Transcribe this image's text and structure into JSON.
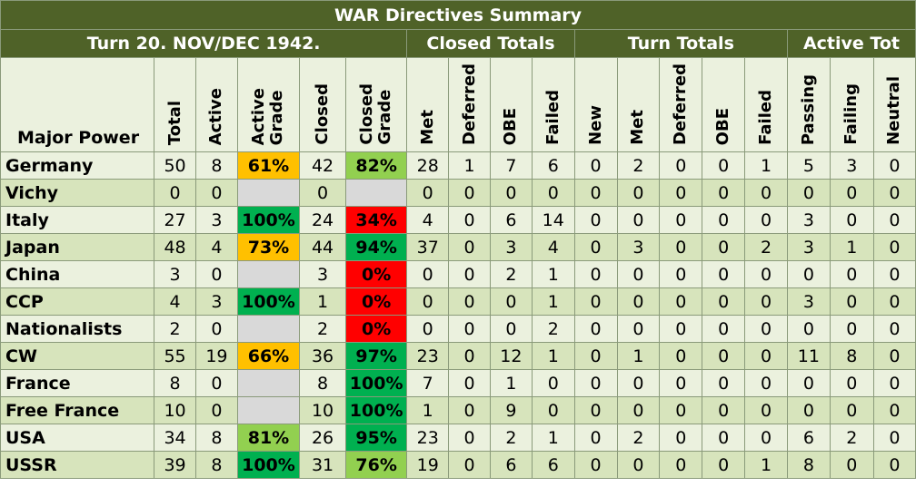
{
  "title": "WAR Directives Summary",
  "groups": {
    "turn": "Turn 20.  NOV/DEC 1942.",
    "closed_totals": "Closed Totals",
    "turn_totals": "Turn Totals",
    "active_tot": "Active Tot"
  },
  "columns": {
    "major_power": "Major Power",
    "total": "Total",
    "active": "Active",
    "active_grade_1": "Active",
    "active_grade_2": "Grade",
    "closed": "Closed",
    "closed_grade_1": "Closed",
    "closed_grade_2": "Grade",
    "ct_met": "Met",
    "ct_deferred": "Deferred",
    "ct_obe": "OBE",
    "ct_failed": "Failed",
    "tt_new": "New",
    "tt_met": "Met",
    "tt_deferred": "Deferred",
    "tt_obe": "OBE",
    "tt_failed": "Failed",
    "at_passing": "Passing",
    "at_failing": "Failing",
    "at_neutral": "Neutral"
  },
  "rows": [
    {
      "name": "Germany",
      "total": "50",
      "active": "8",
      "active_grade": "61%",
      "active_grade_color": "#ffc000",
      "closed": "42",
      "closed_grade": "82%",
      "closed_grade_color": "#92d050",
      "ct_met": "28",
      "ct_deferred": "1",
      "ct_obe": "7",
      "ct_failed": "6",
      "tt_new": "0",
      "tt_met": "2",
      "tt_deferred": "0",
      "tt_obe": "0",
      "tt_failed": "1",
      "at_passing": "5",
      "at_failing": "3",
      "at_neutral": "0"
    },
    {
      "name": "Vichy",
      "total": "0",
      "active": "0",
      "active_grade": "",
      "active_grade_color": "#d9d9d9",
      "closed": "0",
      "closed_grade": "",
      "closed_grade_color": "#d9d9d9",
      "ct_met": "0",
      "ct_deferred": "0",
      "ct_obe": "0",
      "ct_failed": "0",
      "tt_new": "0",
      "tt_met": "0",
      "tt_deferred": "0",
      "tt_obe": "0",
      "tt_failed": "0",
      "at_passing": "0",
      "at_failing": "0",
      "at_neutral": "0"
    },
    {
      "name": "Italy",
      "total": "27",
      "active": "3",
      "active_grade": "100%",
      "active_grade_color": "#00b050",
      "closed": "24",
      "closed_grade": "34%",
      "closed_grade_color": "#ff0000",
      "ct_met": "4",
      "ct_deferred": "0",
      "ct_obe": "6",
      "ct_failed": "14",
      "tt_new": "0",
      "tt_met": "0",
      "tt_deferred": "0",
      "tt_obe": "0",
      "tt_failed": "0",
      "at_passing": "3",
      "at_failing": "0",
      "at_neutral": "0"
    },
    {
      "name": "Japan",
      "total": "48",
      "active": "4",
      "active_grade": "73%",
      "active_grade_color": "#ffc000",
      "closed": "44",
      "closed_grade": "94%",
      "closed_grade_color": "#00b050",
      "ct_met": "37",
      "ct_deferred": "0",
      "ct_obe": "3",
      "ct_failed": "4",
      "tt_new": "0",
      "tt_met": "3",
      "tt_deferred": "0",
      "tt_obe": "0",
      "tt_failed": "2",
      "at_passing": "3",
      "at_failing": "1",
      "at_neutral": "0"
    },
    {
      "name": "China",
      "total": "3",
      "active": "0",
      "active_grade": "",
      "active_grade_color": "#d9d9d9",
      "closed": "3",
      "closed_grade": "0%",
      "closed_grade_color": "#ff0000",
      "ct_met": "0",
      "ct_deferred": "0",
      "ct_obe": "2",
      "ct_failed": "1",
      "tt_new": "0",
      "tt_met": "0",
      "tt_deferred": "0",
      "tt_obe": "0",
      "tt_failed": "0",
      "at_passing": "0",
      "at_failing": "0",
      "at_neutral": "0"
    },
    {
      "name": "CCP",
      "total": "4",
      "active": "3",
      "active_grade": "100%",
      "active_grade_color": "#00b050",
      "closed": "1",
      "closed_grade": "0%",
      "closed_grade_color": "#ff0000",
      "ct_met": "0",
      "ct_deferred": "0",
      "ct_obe": "0",
      "ct_failed": "1",
      "tt_new": "0",
      "tt_met": "0",
      "tt_deferred": "0",
      "tt_obe": "0",
      "tt_failed": "0",
      "at_passing": "3",
      "at_failing": "0",
      "at_neutral": "0"
    },
    {
      "name": "Nationalists",
      "total": "2",
      "active": "0",
      "active_grade": "",
      "active_grade_color": "#d9d9d9",
      "closed": "2",
      "closed_grade": "0%",
      "closed_grade_color": "#ff0000",
      "ct_met": "0",
      "ct_deferred": "0",
      "ct_obe": "0",
      "ct_failed": "2",
      "tt_new": "0",
      "tt_met": "0",
      "tt_deferred": "0",
      "tt_obe": "0",
      "tt_failed": "0",
      "at_passing": "0",
      "at_failing": "0",
      "at_neutral": "0"
    },
    {
      "name": "CW",
      "total": "55",
      "active": "19",
      "active_grade": "66%",
      "active_grade_color": "#ffc000",
      "closed": "36",
      "closed_grade": "97%",
      "closed_grade_color": "#00b050",
      "ct_met": "23",
      "ct_deferred": "0",
      "ct_obe": "12",
      "ct_failed": "1",
      "tt_new": "0",
      "tt_met": "1",
      "tt_deferred": "0",
      "tt_obe": "0",
      "tt_failed": "0",
      "at_passing": "11",
      "at_failing": "8",
      "at_neutral": "0"
    },
    {
      "name": "France",
      "total": "8",
      "active": "0",
      "active_grade": "",
      "active_grade_color": "#d9d9d9",
      "closed": "8",
      "closed_grade": "100%",
      "closed_grade_color": "#00b050",
      "ct_met": "7",
      "ct_deferred": "0",
      "ct_obe": "1",
      "ct_failed": "0",
      "tt_new": "0",
      "tt_met": "0",
      "tt_deferred": "0",
      "tt_obe": "0",
      "tt_failed": "0",
      "at_passing": "0",
      "at_failing": "0",
      "at_neutral": "0"
    },
    {
      "name": "Free France",
      "total": "10",
      "active": "0",
      "active_grade": "",
      "active_grade_color": "#d9d9d9",
      "closed": "10",
      "closed_grade": "100%",
      "closed_grade_color": "#00b050",
      "ct_met": "1",
      "ct_deferred": "0",
      "ct_obe": "9",
      "ct_failed": "0",
      "tt_new": "0",
      "tt_met": "0",
      "tt_deferred": "0",
      "tt_obe": "0",
      "tt_failed": "0",
      "at_passing": "0",
      "at_failing": "0",
      "at_neutral": "0"
    },
    {
      "name": "USA",
      "total": "34",
      "active": "8",
      "active_grade": "81%",
      "active_grade_color": "#92d050",
      "closed": "26",
      "closed_grade": "95%",
      "closed_grade_color": "#00b050",
      "ct_met": "23",
      "ct_deferred": "0",
      "ct_obe": "2",
      "ct_failed": "1",
      "tt_new": "0",
      "tt_met": "2",
      "tt_deferred": "0",
      "tt_obe": "0",
      "tt_failed": "0",
      "at_passing": "6",
      "at_failing": "2",
      "at_neutral": "0"
    },
    {
      "name": "USSR",
      "total": "39",
      "active": "8",
      "active_grade": "100%",
      "active_grade_color": "#00b050",
      "closed": "31",
      "closed_grade": "76%",
      "closed_grade_color": "#92d050",
      "ct_met": "19",
      "ct_deferred": "0",
      "ct_obe": "6",
      "ct_failed": "6",
      "tt_new": "0",
      "tt_met": "0",
      "tt_deferred": "0",
      "tt_obe": "0",
      "tt_failed": "1",
      "at_passing": "8",
      "at_failing": "0",
      "at_neutral": "0"
    }
  ]
}
